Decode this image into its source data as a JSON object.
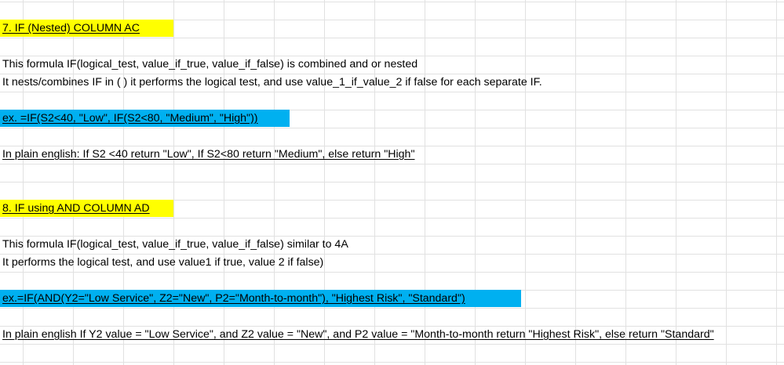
{
  "section7": {
    "heading": "7. IF (Nested) COLUMN AC",
    "line1": "This formula IF(logical_test, value_if_true,  value_if_false) is combined  and or nested",
    "line2": "It nests/combines IF in ( ) it performs the logical test, and use value_1_if_value_2  if false for each separate IF.",
    "example": "ex. =IF(S2<40, \"Low\", IF(S2<80, \"Medium\", \"High\"))",
    "plain": "In plain english: If S2 <40 return \"Low\", If S2<80  return \"Medium\", else return \"High\""
  },
  "section8": {
    "heading": "8. IF using AND COLUMN AD",
    "line1": "This formula IF(logical_test, value_if_true, value_if_false) similar to 4A",
    "line2": "It performs the logical test, and use value1 if true, value 2 if false)",
    "example": "ex.=IF(AND(Y2=\"Low Service\", Z2=\"New\", P2=\"Month-to-month\"), \"Highest Risk\", \"Standard\")",
    "plain": "In plain english If Y2 value = \"Low Service\", and Z2 value = \"New\", and P2 value = \"Month-to-month return \"Highest Risk\", else return \"Standard\""
  },
  "colors": {
    "yellow_highlight": "#ffff00",
    "blue_highlight": "#00b0f0",
    "gridline": "#e1e1e1"
  }
}
